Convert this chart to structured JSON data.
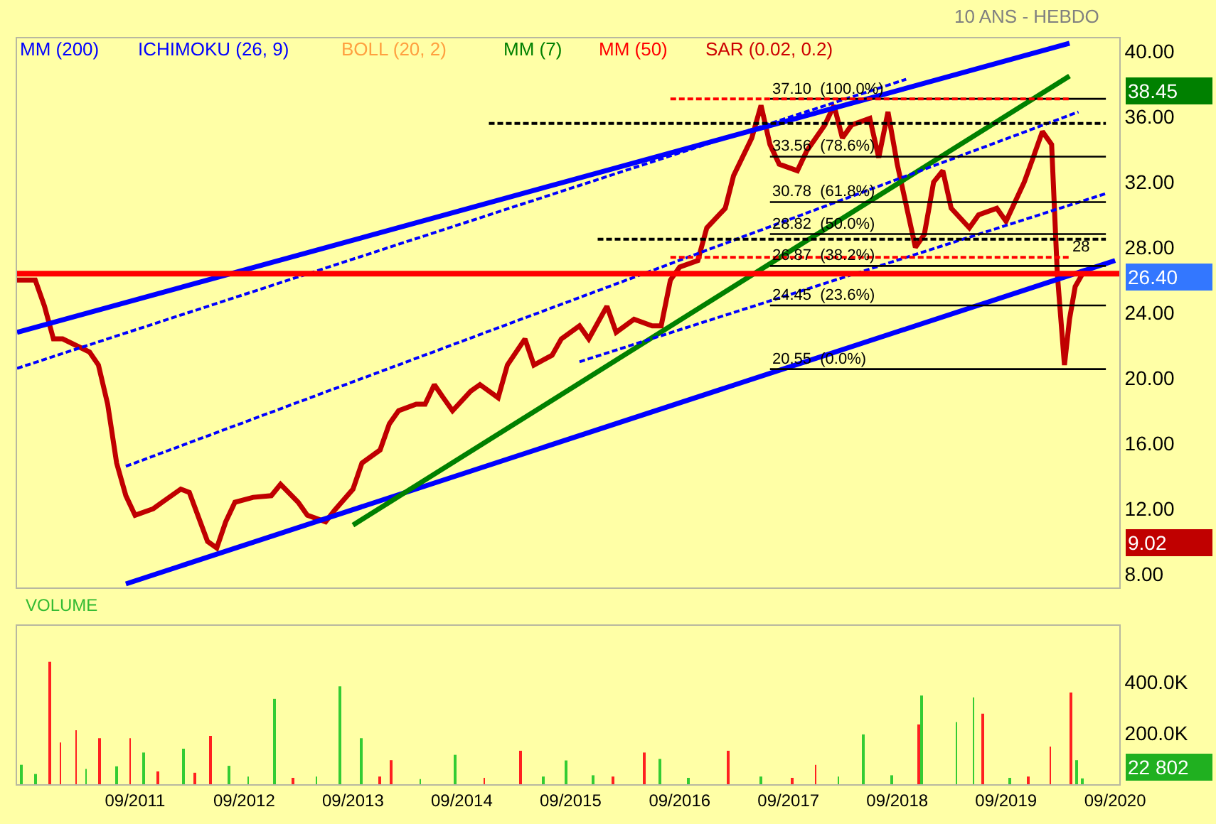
{
  "chart_data": [
    {
      "type": "line",
      "subtitle": "10 ANS - HEBDO",
      "tick_labels": "y",
      "grid": false,
      "xlim": [
        "2010-08-01",
        "2020-09-15"
      ],
      "ylim": [
        7.2,
        40.8
      ],
      "yticks": [
        {
          "value": 8,
          "label": "8.00"
        },
        {
          "value": 12,
          "label": "12.00"
        },
        {
          "value": 16,
          "label": "16.00"
        },
        {
          "value": 20,
          "label": "20.00"
        },
        {
          "value": 24,
          "label": "24.00"
        },
        {
          "value": 28,
          "label": "28.00"
        },
        {
          "value": 32,
          "label": "32.00"
        },
        {
          "value": 36,
          "label": "36.00"
        },
        {
          "value": 40,
          "label": "40.00"
        }
      ],
      "series": [
        {
          "color": "#c00000",
          "x": [
            "2010-08",
            "2010-10",
            "2010-11",
            "2010-12",
            "2011-01",
            "2011-04",
            "2011-05",
            "2011-06",
            "2011-07",
            "2011-08",
            "2011-09",
            "2011-11",
            "2011-12",
            "2012-02",
            "2012-03",
            "2012-05",
            "2012-06",
            "2012-07",
            "2012-08",
            "2012-10",
            "2012-12",
            "2013-01",
            "2013-03",
            "2013-04",
            "2013-06",
            "2013-07",
            "2013-09",
            "2013-10",
            "2013-12",
            "2014-01",
            "2014-02",
            "2014-04",
            "2014-05",
            "2014-06",
            "2014-07",
            "2014-08",
            "2014-10",
            "2014-11",
            "2015-01",
            "2015-02",
            "2015-04",
            "2015-05",
            "2015-07",
            "2015-08",
            "2015-10",
            "2015-11",
            "2016-01",
            "2016-02",
            "2016-04",
            "2016-06",
            "2016-07",
            "2016-08",
            "2016-09",
            "2016-11",
            "2016-12",
            "2017-02",
            "2017-03",
            "2017-05",
            "2017-06",
            "2017-07",
            "2017-08",
            "2017-10",
            "2017-11",
            "2018-01",
            "2018-02",
            "2018-03",
            "2018-04",
            "2018-06",
            "2018-07",
            "2018-08",
            "2018-09",
            "2018-11",
            "2018-12",
            "2019-01",
            "2019-02",
            "2019-03",
            "2019-05",
            "2019-06",
            "2019-08",
            "2019-09",
            "2019-11",
            "2019-12",
            "2020-01",
            "2020-02-01",
            "2020-02-20",
            "2020-03-15",
            "2020-04-01",
            "2020-04-20",
            "2020-05-15"
          ],
          "values": [
            26.0,
            26.0,
            24.4,
            22.4,
            22.4,
            21.6,
            20.8,
            18.4,
            14.8,
            12.8,
            11.6,
            12.0,
            12.4,
            13.2,
            13.0,
            10.0,
            9.6,
            11.2,
            12.4,
            12.7,
            12.8,
            13.5,
            12.4,
            11.6,
            11.2,
            11.9,
            13.2,
            14.8,
            15.6,
            17.2,
            18.0,
            18.4,
            18.4,
            19.6,
            18.8,
            18.0,
            19.2,
            19.6,
            18.8,
            20.8,
            22.4,
            20.8,
            21.4,
            22.4,
            23.2,
            22.4,
            24.4,
            22.8,
            23.6,
            23.2,
            23.2,
            26.0,
            26.8,
            27.2,
            29.2,
            30.4,
            32.4,
            34.7,
            36.7,
            34.3,
            33.1,
            32.7,
            33.9,
            35.5,
            36.7,
            34.7,
            35.5,
            35.9,
            33.5,
            36.3,
            33.1,
            28.0,
            28.8,
            32.0,
            32.7,
            30.4,
            29.2,
            30.0,
            30.4,
            29.6,
            32.0,
            33.5,
            35.1,
            34.3,
            26.4,
            20.8,
            23.6,
            25.6,
            26.4
          ]
        },
        {
          "color": "#0000ff",
          "x": [
            "2010-08",
            "2020-04"
          ],
          "values": [
            22.8,
            40.5
          ]
        },
        {
          "color": "#0000ff",
          "x": [
            "2011-08",
            "2020-09"
          ],
          "values": [
            7.4,
            27.2
          ]
        },
        {
          "color": "#008000",
          "x": [
            "2013-09",
            "2020-04"
          ],
          "values": [
            11.0,
            38.5
          ]
        },
        {
          "color": "#0000ff",
          "line_style": "dashed",
          "x": [
            "2010-08",
            "2018-10"
          ],
          "values": [
            20.6,
            38.3
          ]
        },
        {
          "color": "#0000ff",
          "line_style": "dashed",
          "x": [
            "2011-08",
            "2020-05"
          ],
          "values": [
            14.6,
            36.3
          ]
        },
        {
          "color": "#0000ff",
          "line_style": "dashed",
          "x": [
            "2015-10",
            "2020-08"
          ],
          "values": [
            21.0,
            31.3
          ]
        },
        {
          "color": "#000000",
          "line_style": "dashed",
          "x": [
            "2014-12",
            "2020-08"
          ],
          "values": [
            35.6,
            35.6
          ]
        },
        {
          "color": "#000000",
          "line_style": "dashed",
          "x": [
            "2015-12",
            "2020-08"
          ],
          "values": [
            28.5,
            28.5
          ]
        },
        {
          "color": "#000000",
          "x": [
            "2017-07",
            "2020-08"
          ],
          "values": [
            37.1,
            37.1
          ]
        },
        {
          "color": "#000000",
          "x": [
            "2017-07",
            "2020-08"
          ],
          "values": [
            33.56,
            33.56
          ]
        },
        {
          "color": "#000000",
          "x": [
            "2017-07",
            "2020-08"
          ],
          "values": [
            30.78,
            30.78
          ]
        },
        {
          "color": "#000000",
          "x": [
            "2017-07",
            "2020-08"
          ],
          "values": [
            28.82,
            28.82
          ]
        },
        {
          "color": "#000000",
          "x": [
            "2017-07",
            "2020-08"
          ],
          "values": [
            26.87,
            26.87
          ]
        },
        {
          "color": "#000000",
          "x": [
            "2017-07",
            "2020-08"
          ],
          "values": [
            24.45,
            24.45
          ]
        },
        {
          "color": "#000000",
          "x": [
            "2017-07",
            "2020-08"
          ],
          "values": [
            20.55,
            20.55
          ]
        },
        {
          "color": "#ff0000",
          "line_style": "dashed",
          "x": [
            "2016-08",
            "2020-04"
          ],
          "values": [
            37.1,
            37.1
          ]
        },
        {
          "color": "#ff0000",
          "line_style": "dashed",
          "x": [
            "2016-08",
            "2020-04"
          ],
          "values": [
            27.4,
            27.4
          ]
        }
      ],
      "ref_lines": [
        {
          "axis": "y",
          "value": 26.4,
          "color": "#ff0000"
        }
      ],
      "annotations": [
        "MM (200)",
        "ICHIMOKU (26, 9)",
        "BOLL (20, 2)",
        "MM (7)",
        "MM (50)",
        "SAR (0.02, 0.2)",
        {
          "text": "37.10  (100.0%)",
          "x": "2017-07",
          "y": 37.1
        },
        {
          "text": "33.56  (78.6%)",
          "x": "2017-07",
          "y": 33.56
        },
        {
          "text": "30.78  (61.8%)",
          "x": "2017-07",
          "y": 30.78
        },
        {
          "text": "28.82  (50.0%)",
          "x": "2017-07",
          "y": 28.82
        },
        {
          "text": "26.87  (38.2%)",
          "x": "2017-07",
          "y": 26.87
        },
        {
          "text": "24.45  (23.6%)",
          "x": "2017-07",
          "y": 24.45
        },
        {
          "text": "20.55  (0.0%)",
          "x": "2017-07",
          "y": 20.55
        },
        {
          "text": "28",
          "x": "2020-04",
          "y": 27.4
        },
        "38.45",
        "26.40",
        "9.02"
      ]
    },
    {
      "type": "bar",
      "title": "VOLUME",
      "grid": false,
      "xlim": [
        "2010-08-01",
        "2020-09-15"
      ],
      "ylim": [
        0,
        620
      ],
      "xticks": [
        {
          "value": "2011-09-01",
          "label": "09/2011"
        },
        {
          "value": "2012-09-01",
          "label": "09/2012"
        },
        {
          "value": "2013-09-01",
          "label": "09/2013"
        },
        {
          "value": "2014-09-01",
          "label": "09/2014"
        },
        {
          "value": "2015-09-01",
          "label": "09/2015"
        },
        {
          "value": "2016-09-01",
          "label": "09/2016"
        },
        {
          "value": "2017-09-01",
          "label": "09/2017"
        },
        {
          "value": "2018-09-01",
          "label": "09/2018"
        },
        {
          "value": "2019-09-01",
          "label": "09/2019"
        },
        {
          "value": "2020-09-01",
          "label": "09/2020"
        }
      ],
      "yticks": [
        {
          "value": 200,
          "label": "200.0K"
        },
        {
          "value": 400,
          "label": "400.0K"
        }
      ],
      "series": [
        {
          "x": [
            "2010-08-15",
            "2010-10-01",
            "2010-11-20",
            "2010-12-25",
            "2011-02-15",
            "2011-03-20",
            "2011-05-05",
            "2011-07-01",
            "2011-08-15",
            "2011-09-28",
            "2011-11-15",
            "2012-02-10",
            "2012-03-20",
            "2012-05-12",
            "2012-07-12",
            "2012-09-15",
            "2012-12-12",
            "2013-02-10",
            "2013-05-01",
            "2013-07-18",
            "2013-09-28",
            "2013-12-01",
            "2014-01-06",
            "2014-04-15",
            "2014-08-10",
            "2014-11-15",
            "2015-03-18",
            "2015-06-01",
            "2015-08-18",
            "2015-11-15",
            "2016-01-20",
            "2016-05-06",
            "2016-06-28",
            "2016-10-01",
            "2017-02-12",
            "2017-06-01",
            "2017-09-15",
            "2017-12-01",
            "2018-02-15",
            "2018-05-10",
            "2018-08-15",
            "2018-11-12",
            "2018-11-22",
            "2019-03-18",
            "2019-05-15",
            "2019-06-15",
            "2019-09-15",
            "2019-11-15",
            "2020-01-28",
            "2020-04-06",
            "2020-04-25",
            "2020-05-15"
          ],
          "values": [
            76,
            40,
            479,
            163,
            211,
            60,
            180,
            70,
            180,
            124,
            50,
            139,
            45,
            189,
            72,
            30,
            334,
            25,
            30,
            383,
            180,
            30,
            94,
            20,
            115,
            25,
            131,
            30,
            93,
            35,
            30,
            124,
            99,
            25,
            131,
            30,
            25,
            76,
            30,
            195,
            35,
            234,
            347,
            243,
            340,
            276,
            25,
            30,
            147,
            359,
            94,
            22.802
          ],
          "colors": [
            "#33cc33",
            "#33cc33",
            "#ff2020",
            "#ff2020",
            "#ff2020",
            "#33cc33",
            "#ff2020",
            "#33cc33",
            "#ff2020",
            "#33cc33",
            "#ff2020",
            "#33cc33",
            "#ff2020",
            "#ff2020",
            "#33cc33",
            "#33cc33",
            "#33cc33",
            "#ff2020",
            "#33cc33",
            "#33cc33",
            "#33cc33",
            "#ff2020",
            "#ff2020",
            "#33cc33",
            "#33cc33",
            "#ff2020",
            "#ff2020",
            "#33cc33",
            "#33cc33",
            "#33cc33",
            "#ff2020",
            "#ff2020",
            "#33cc33",
            "#33cc33",
            "#ff2020",
            "#33cc33",
            "#ff2020",
            "#ff2020",
            "#33cc33",
            "#33cc33",
            "#33cc33",
            "#ff2020",
            "#33cc33",
            "#33cc33",
            "#33cc33",
            "#ff2020",
            "#33cc33",
            "#ff2020",
            "#ff2020",
            "#ff2020",
            "#33cc33",
            "#33cc33"
          ]
        }
      ],
      "annotations": [
        "22 802"
      ]
    }
  ]
}
